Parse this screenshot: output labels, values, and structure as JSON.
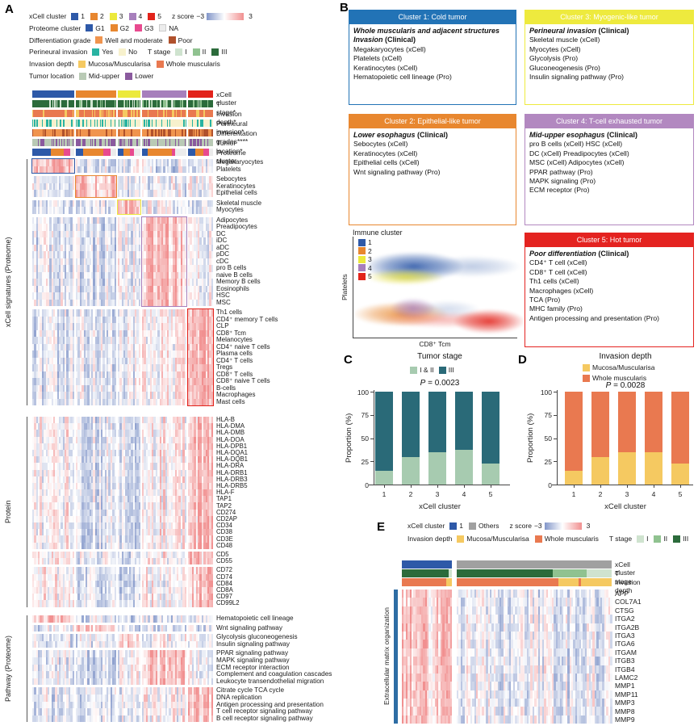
{
  "panels": {
    "A": "A",
    "B": "B",
    "C": "C",
    "D": "D",
    "E": "E"
  },
  "colors": {
    "xcell": [
      "#2e59a8",
      "#e8872f",
      "#ece93c",
      "#a77fbc",
      "#e2231b"
    ],
    "proteome": {
      "G1": "#2e59a8",
      "G2": "#e8872f",
      "G3": "#e84a8f",
      "NA": "#ececec"
    },
    "diff": {
      "well": "#f0944e",
      "poor": "#b0512c"
    },
    "perineural": {
      "yes": "#29b3a2",
      "no": "#f7f1cd"
    },
    "tstage": {
      "I": "#cfe3cf",
      "II": "#90c290",
      "III": "#2c6b3b"
    },
    "invasion": {
      "mucosa": "#f5c961",
      "whole": "#e97950"
    },
    "location": {
      "midupper": "#b9cab5",
      "lower": "#8a5a9e"
    },
    "zneg": "#8296c9",
    "zpos": "#f19090",
    "others_gray": "#a0a0a0",
    "stage_cd": {
      "I_II": "#a7cbb0",
      "III": "#2a6a78"
    },
    "box_headers": [
      "#2273b6",
      "#e8872f",
      "#eeea3e",
      "#b288c0",
      "#e42320"
    ]
  },
  "panelA": {
    "legend_rows": [
      [
        {
          "t": "label",
          "text": "xCell cluster"
        },
        {
          "t": "chip",
          "c": "#2e59a8",
          "text": "1"
        },
        {
          "t": "chip",
          "c": "#e8872f",
          "text": "2"
        },
        {
          "t": "chip",
          "c": "#ece93c",
          "text": "3"
        },
        {
          "t": "chip",
          "c": "#a77fbc",
          "text": "4"
        },
        {
          "t": "chip",
          "c": "#e2231b",
          "text": "5"
        },
        {
          "t": "gap"
        },
        {
          "t": "label",
          "text": "z score"
        },
        {
          "t": "text",
          "text": "−3"
        },
        {
          "t": "zgrad"
        },
        {
          "t": "text",
          "text": "3"
        }
      ],
      [
        {
          "t": "label",
          "text": "Proteome cluster"
        },
        {
          "t": "chip",
          "c": "#2e59a8",
          "text": "G1"
        },
        {
          "t": "chip",
          "c": "#e8872f",
          "text": "G2"
        },
        {
          "t": "chip",
          "c": "#e84a8f",
          "text": "G3"
        },
        {
          "t": "chip",
          "c": "#ececec",
          "text": "NA"
        }
      ],
      [
        {
          "t": "label",
          "text": "Differentiation grade"
        },
        {
          "t": "chip",
          "c": "#f0944e",
          "text": "Well and moderate"
        },
        {
          "t": "chip",
          "c": "#b0512c",
          "text": "Poor"
        }
      ],
      [
        {
          "t": "label",
          "text": "Perineural invasion"
        },
        {
          "t": "chip",
          "c": "#29b3a2",
          "text": "Yes"
        },
        {
          "t": "chip",
          "c": "#f7f1cd",
          "text": "No"
        },
        {
          "t": "gap"
        },
        {
          "t": "label",
          "text": "T stage"
        },
        {
          "t": "chip",
          "c": "#cfe3cf",
          "text": "I"
        },
        {
          "t": "chip",
          "c": "#90c290",
          "text": "II"
        },
        {
          "t": "chip",
          "c": "#2c6b3b",
          "text": "III"
        }
      ],
      [
        {
          "t": "label",
          "text": "Invasion depth"
        },
        {
          "t": "chip",
          "c": "#f5c961",
          "text": "Mucosa/Muscularisa"
        },
        {
          "t": "chip",
          "c": "#e97950",
          "text": "Whole muscularis"
        }
      ],
      [
        {
          "t": "label",
          "text": "Tumor location"
        },
        {
          "t": "chip",
          "c": "#b9cab5",
          "text": "Mid-upper"
        },
        {
          "t": "chip",
          "c": "#8a5a9e",
          "text": "Lower"
        }
      ]
    ],
    "annotation_labels": [
      "xCell cluster",
      "T stage*",
      "Invasion depth*",
      "Perineural invasion*",
      "Differentation grades****",
      "Tumor location*",
      "Proteome cluster"
    ]
  },
  "panelB": {
    "boxes": [
      {
        "header": "Cluster 1:  Cold tumor",
        "highlight": "Whole muscularis and adjacent structures Invasion",
        "suffix": " (Clinical)",
        "items": [
          "Megakaryocytes (xCell)",
          "Platelets  (xCell)",
          "Keratinocytes  (xCell)",
          "Hematopoietic cell lineage (Pro)"
        ]
      },
      {
        "header": "Cluster 2:  Epithelial-like tumor",
        "highlight": "Lower esophagus",
        "suffix": " (Clinical)",
        "items": [
          "Sebocytes (xCell)",
          "Keratinocytes (xCell)",
          "Epithelial cells (xCell)",
          "Wnt signaling pathway (Pro)"
        ]
      },
      {
        "header": "Cluster 3:  Myogenic-like tumor",
        "highlight": "Perineural invasion",
        "suffix": " (Clinical)",
        "items": [
          "Skeletal muscle  (xCell)",
          "Myocytes  (xCell)",
          "Glycolysis (Pro)",
          "Gluconeogenesis (Pro)",
          "Insulin signaling pathway (Pro)"
        ]
      },
      {
        "header": "Cluster 4: T-cell exhausted tumor",
        "highlight": "Mid-upper esophagus",
        "suffix": " (Clinical)",
        "items": [
          "pro B cells (xCell) HSC (xCell)",
          "DC (xCell)  Preadipocytes (xCell)",
          "MSC (xCell)  Adipocytes (xCell)",
          "PPAR pathway (Pro)",
          "MAPK signaling  (Pro)",
          "ECM receptor  (Pro)"
        ]
      },
      {
        "header": "Cluster 5:  Hot tumor",
        "highlight": "Poor differentiation",
        "suffix": " (Clinical)",
        "items": [
          "CD4⁺ T cell (xCell)",
          "CD8⁺ T cell (xCell)",
          "Th1 cells (xCell)",
          "Macrophages (xCell)",
          "TCA (Pro)",
          "MHC family (Pro)",
          "Antigen processing and presentation (Pro)"
        ]
      }
    ]
  },
  "panelE": {
    "legend_rows": [
      [
        {
          "t": "label",
          "text": "xCell cluster"
        },
        {
          "t": "chip",
          "c": "#2e59a8",
          "text": "1"
        },
        {
          "t": "chip",
          "c": "#a0a0a0",
          "text": "Others"
        },
        {
          "t": "gap"
        },
        {
          "t": "label",
          "text": "z score"
        },
        {
          "t": "text",
          "text": "−3"
        },
        {
          "t": "zgrad"
        },
        {
          "t": "text",
          "text": "3"
        }
      ],
      [
        {
          "t": "label",
          "text": "Invasion depth"
        },
        {
          "t": "chip",
          "c": "#f5c961",
          "text": "Mucosa/Muscularisa"
        },
        {
          "t": "chip",
          "c": "#e97950",
          "text": "Whole muscularis"
        },
        {
          "t": "gap"
        },
        {
          "t": "label",
          "text": "T stage"
        },
        {
          "t": "chip",
          "c": "#cfe3cf",
          "text": "I"
        },
        {
          "t": "chip",
          "c": "#90c290",
          "text": "II"
        },
        {
          "t": "chip",
          "c": "#2c6b3b",
          "text": "III"
        }
      ]
    ],
    "annotation_labels": [
      "xCell cluster",
      "T stage",
      "Invasion depth"
    ],
    "row_group": "Extracellular matrix organization"
  },
  "chart_data": [
    {
      "id": "A",
      "type": "heatmap",
      "zlim": [
        -3,
        3
      ],
      "column_groups": [
        "1",
        "2",
        "3",
        "4",
        "5"
      ],
      "sections": [
        {
          "name": "xCell signatures (Proteome)",
          "groups": [
            [
              "Megakaryocytes",
              "Platelets"
            ],
            [
              "Sebocytes",
              "Keratinocytes",
              "Epithelial cells"
            ],
            [
              "Skeletal muscle",
              "Myocytes"
            ],
            [
              "Adipocytes",
              "Preadipocytes",
              "DC",
              "iDC",
              "aDC",
              "pDC",
              "cDC",
              "pro B cells",
              "naive B cells",
              "Memory B cells",
              "Eosinophils",
              "HSC",
              "MSC"
            ],
            [
              "Th1 cells",
              "CD4⁺ memory T cells",
              "CLP",
              "CD8⁺ Tcm",
              "Melanocytes",
              "CD4⁺ naive T cells",
              "Plasma cells",
              "CD4⁺ T cells",
              "Tregs",
              "CD8⁺ T cells",
              "CD8⁺ naive T cells",
              "B-cells",
              "Macrophages",
              "Mast cells"
            ]
          ]
        },
        {
          "name": "Protein",
          "groups": [
            [
              "HLA-B",
              "HLA-DMA",
              "HLA-DMB",
              "HLA-DOA",
              "HLA-DPB1",
              "HLA-DQA1",
              "HLA-DQB1",
              "HLA-DRA",
              "HLA-DRB1",
              "HLA-DRB3",
              "HLA-DRB5",
              "HLA-F",
              "TAP1",
              "TAP2",
              "CD274",
              "CD2AP",
              "CD34",
              "CD38",
              "CD3E",
              "CD48"
            ],
            [
              "CD5",
              "CD55"
            ],
            [
              "CD72",
              "CD74",
              "CD84",
              "CD8A",
              "CD97",
              "CD99L2"
            ]
          ]
        },
        {
          "name": "Pathway (Proteome)",
          "groups": [
            [
              "Hematopoietic cell lineage"
            ],
            [
              "Wnt signaling pathway"
            ],
            [
              "Glycolysis gluconeogenesis",
              "Insulin signaling pathway"
            ],
            [
              "PPAR signaling pathway",
              "MAPK signaling pathway",
              "ECM receptor interaction",
              "Complement and coagulation cascades",
              "Leukocyte transendothelial migration"
            ],
            [
              "Citrate cycle TCA cycle",
              "DNA replication",
              "Antigen processing and presentation",
              "T cell receptor signaling pathway",
              "B cell receptor signaling pathway"
            ]
          ]
        }
      ]
    },
    {
      "id": "B-density",
      "type": "scatter",
      "title": "Immune cluster",
      "xlabel": "CD8⁺ Tcm",
      "ylabel": "Platelets",
      "legend": [
        "1",
        "2",
        "3",
        "4",
        "5"
      ]
    },
    {
      "id": "C",
      "type": "bar",
      "stacked": true,
      "title": "Tumor stage",
      "annotation": "P = 0.0023",
      "categories": [
        "1",
        "2",
        "3",
        "4",
        "5"
      ],
      "series": [
        {
          "name": "I & II",
          "color": "#a7cbb0",
          "values": [
            15,
            30,
            35,
            37,
            23
          ]
        },
        {
          "name": "III",
          "color": "#2a6a78",
          "values": [
            85,
            70,
            65,
            63,
            77
          ]
        }
      ],
      "xlabel": "xCell cluster",
      "ylabel": "Proportion (%)",
      "ylim": [
        0,
        100
      ],
      "yticks": [
        0,
        25,
        50,
        75,
        100
      ]
    },
    {
      "id": "D",
      "type": "bar",
      "stacked": true,
      "title": "Invasion depth",
      "annotation": "P = 0.0028",
      "categories": [
        "1",
        "2",
        "3",
        "4",
        "5"
      ],
      "series": [
        {
          "name": "Mucosa/Muscularisa",
          "color": "#f5c961",
          "values": [
            15,
            30,
            35,
            35,
            23
          ]
        },
        {
          "name": "Whole muscularis",
          "color": "#e97950",
          "values": [
            85,
            70,
            65,
            65,
            77
          ]
        }
      ],
      "xlabel": "xCell cluster",
      "ylabel": "Proportion (%)",
      "ylim": [
        0,
        100
      ],
      "yticks": [
        0,
        25,
        50,
        75,
        100
      ]
    },
    {
      "id": "E",
      "type": "heatmap",
      "zlim": [
        -3,
        3
      ],
      "rows": [
        "APP",
        "COL7A1",
        "CTSG",
        "ITGA2",
        "ITGA2B",
        "ITGA3",
        "ITGA6",
        "ITGAM",
        "ITGB3",
        "ITGB4",
        "LAMC2",
        "MMP1",
        "MMP11",
        "MMP3",
        "MMP8",
        "MMP9"
      ]
    }
  ]
}
